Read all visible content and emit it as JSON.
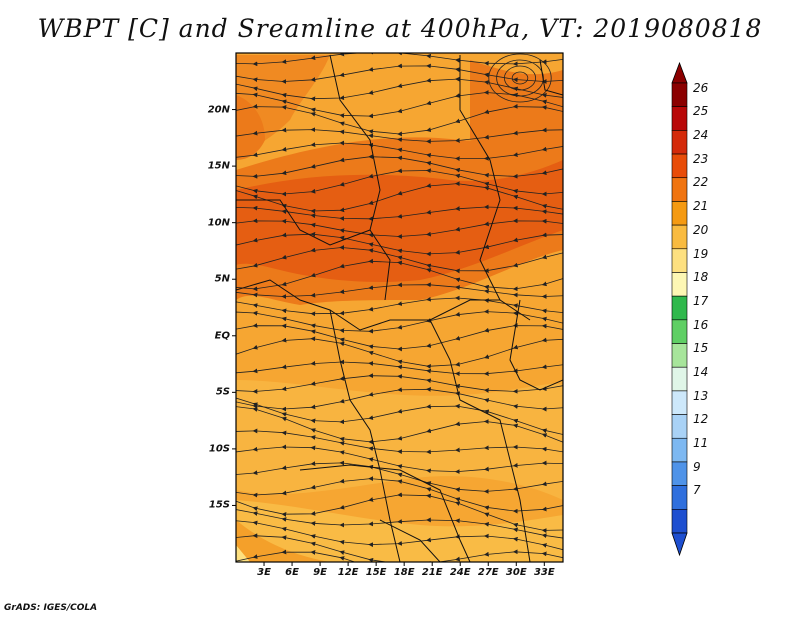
{
  "title": "WBPT [C] and Sreamline at 400hPa, VT: 2019080818",
  "lat_ticks": [
    {
      "label": "20N",
      "value": 20
    },
    {
      "label": "15N",
      "value": 15
    },
    {
      "label": "10N",
      "value": 10
    },
    {
      "label": "5N",
      "value": 5
    },
    {
      "label": "EQ",
      "value": 0
    },
    {
      "label": "5S",
      "value": -5
    },
    {
      "label": "10S",
      "value": -10
    },
    {
      "label": "15S",
      "value": -15
    }
  ],
  "lon_ticks": [
    {
      "label": "3E",
      "value": 3
    },
    {
      "label": "6E",
      "value": 6
    },
    {
      "label": "9E",
      "value": 9
    },
    {
      "label": "12E",
      "value": 12
    },
    {
      "label": "15E",
      "value": 15
    },
    {
      "label": "18E",
      "value": 18
    },
    {
      "label": "21E",
      "value": 21
    },
    {
      "label": "24E",
      "value": 24
    },
    {
      "label": "27E",
      "value": 27
    },
    {
      "label": "30E",
      "value": 30
    },
    {
      "label": "33E",
      "value": 33
    }
  ],
  "extent": {
    "lon": [
      0,
      35
    ],
    "lat": [
      -20,
      25
    ]
  },
  "colorbar": {
    "labels": [
      "26",
      "25",
      "24",
      "23",
      "22",
      "21",
      "20",
      "19",
      "18",
      "17",
      "16",
      "15",
      "14",
      "13",
      "12",
      "11",
      "9",
      "7"
    ],
    "colors": [
      "#8b0000",
      "#b80808",
      "#d42a0a",
      "#e84c08",
      "#f07410",
      "#f59a12",
      "#f9bb40",
      "#fde080",
      "#fdf7b4",
      "#2fb84c",
      "#5fcf64",
      "#a7e59b",
      "#e0f6e8",
      "#cde8fb",
      "#a9d2f6",
      "#7db8f1",
      "#4f93e8",
      "#2f6fdd",
      "#1e4fd0"
    ],
    "top_arrow_color": "#8b0000",
    "bottom_arrow_color": "#1e4fd0"
  },
  "credit": "GrADS: IGES/COLA"
}
